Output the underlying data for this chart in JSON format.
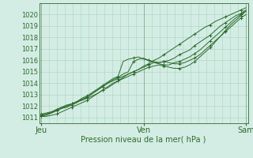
{
  "bg_color": "#d4ede4",
  "grid_color": "#b0d8c8",
  "line_color": "#2d6a2d",
  "ylabel_text": "Pression niveau de la mer( hPa )",
  "xtick_labels": [
    "Jeu",
    "Ven",
    "Sam"
  ],
  "xtick_positions": [
    0,
    1,
    2
  ],
  "ylim": [
    1010.5,
    1021.0
  ],
  "yticks": [
    1011,
    1012,
    1013,
    1014,
    1015,
    1016,
    1017,
    1018,
    1019,
    1020
  ],
  "xlim": [
    -0.02,
    2.02
  ],
  "figsize": [
    3.2,
    2.0
  ],
  "dpi": 100,
  "lines": [
    {
      "x": [
        0.0,
        0.05,
        0.1,
        0.15,
        0.2,
        0.25,
        0.3,
        0.35,
        0.4,
        0.45,
        0.5,
        0.55,
        0.6,
        0.65,
        0.7,
        0.75,
        0.8,
        0.85,
        0.9,
        0.95,
        1.0,
        1.05,
        1.1,
        1.15,
        1.2,
        1.25,
        1.3,
        1.35,
        1.4,
        1.45,
        1.5,
        1.55,
        1.6,
        1.65,
        1.7,
        1.75,
        1.8,
        1.85,
        1.9,
        1.95,
        2.0
      ],
      "y": [
        1011.3,
        1011.4,
        1011.5,
        1011.7,
        1011.9,
        1012.1,
        1012.2,
        1012.4,
        1012.5,
        1012.7,
        1012.9,
        1013.1,
        1013.4,
        1013.6,
        1013.9,
        1014.2,
        1014.5,
        1014.8,
        1015.0,
        1015.2,
        1015.5,
        1015.7,
        1016.0,
        1016.2,
        1016.5,
        1016.8,
        1017.1,
        1017.4,
        1017.7,
        1018.0,
        1018.3,
        1018.6,
        1018.9,
        1019.1,
        1019.4,
        1019.6,
        1019.8,
        1020.0,
        1020.2,
        1020.4,
        1020.6
      ]
    },
    {
      "x": [
        0.0,
        0.05,
        0.1,
        0.15,
        0.2,
        0.25,
        0.3,
        0.35,
        0.4,
        0.45,
        0.5,
        0.55,
        0.6,
        0.65,
        0.7,
        0.75,
        0.8,
        0.85,
        0.9,
        0.95,
        1.0,
        1.05,
        1.1,
        1.15,
        1.2,
        1.25,
        1.3,
        1.35,
        1.4,
        1.45,
        1.5,
        1.55,
        1.6,
        1.65,
        1.7,
        1.75,
        1.8,
        1.85,
        1.9,
        1.95,
        2.0
      ],
      "y": [
        1011.2,
        1011.3,
        1011.5,
        1011.7,
        1011.9,
        1012.0,
        1012.2,
        1012.4,
        1012.7,
        1012.9,
        1013.2,
        1013.5,
        1013.8,
        1014.1,
        1014.4,
        1014.6,
        1015.9,
        1016.1,
        1016.2,
        1016.3,
        1016.1,
        1016.0,
        1015.9,
        1015.8,
        1015.9,
        1016.0,
        1016.2,
        1016.5,
        1016.7,
        1016.9,
        1017.3,
        1017.6,
        1017.9,
        1018.2,
        1018.6,
        1019.0,
        1019.3,
        1019.6,
        1019.9,
        1020.1,
        1020.4
      ]
    },
    {
      "x": [
        0.0,
        0.05,
        0.1,
        0.15,
        0.2,
        0.25,
        0.3,
        0.35,
        0.4,
        0.45,
        0.5,
        0.55,
        0.6,
        0.65,
        0.7,
        0.75,
        0.8,
        0.85,
        0.9,
        0.95,
        1.0,
        1.05,
        1.1,
        1.15,
        1.2,
        1.25,
        1.3,
        1.35,
        1.4,
        1.45,
        1.5,
        1.55,
        1.6,
        1.65,
        1.7,
        1.75,
        1.8,
        1.85,
        1.9,
        1.95,
        2.0
      ],
      "y": [
        1011.2,
        1011.3,
        1011.4,
        1011.6,
        1011.8,
        1012.0,
        1012.2,
        1012.4,
        1012.6,
        1012.8,
        1013.1,
        1013.4,
        1013.7,
        1014.0,
        1014.3,
        1014.5,
        1014.8,
        1015.0,
        1015.9,
        1016.1,
        1016.2,
        1016.0,
        1015.8,
        1015.7,
        1015.6,
        1015.6,
        1015.8,
        1015.9,
        1016.1,
        1016.3,
        1016.6,
        1016.9,
        1017.3,
        1017.7,
        1018.1,
        1018.5,
        1018.9,
        1019.3,
        1019.7,
        1020.0,
        1020.3
      ]
    },
    {
      "x": [
        0.0,
        0.05,
        0.1,
        0.15,
        0.2,
        0.25,
        0.3,
        0.35,
        0.4,
        0.45,
        0.5,
        0.55,
        0.6,
        0.65,
        0.7,
        0.75,
        0.8,
        0.85,
        0.9,
        0.95,
        1.0,
        1.05,
        1.1,
        1.15,
        1.2,
        1.25,
        1.3,
        1.35,
        1.4,
        1.45,
        1.5,
        1.55,
        1.6,
        1.65,
        1.7,
        1.75,
        1.8,
        1.85,
        1.9,
        1.95,
        2.0
      ],
      "y": [
        1011.1,
        1011.2,
        1011.4,
        1011.6,
        1011.8,
        1011.9,
        1012.1,
        1012.3,
        1012.6,
        1012.8,
        1013.1,
        1013.4,
        1013.7,
        1014.0,
        1014.2,
        1014.4,
        1014.6,
        1014.8,
        1015.0,
        1015.2,
        1015.4,
        1015.6,
        1015.8,
        1015.8,
        1015.9,
        1015.8,
        1015.7,
        1015.7,
        1015.8,
        1016.0,
        1016.2,
        1016.5,
        1016.9,
        1017.3,
        1017.7,
        1018.1,
        1018.5,
        1018.9,
        1019.3,
        1019.7,
        1020.0
      ]
    },
    {
      "x": [
        0.0,
        0.05,
        0.1,
        0.15,
        0.2,
        0.25,
        0.3,
        0.35,
        0.4,
        0.45,
        0.5,
        0.55,
        0.6,
        0.65,
        0.7,
        0.75,
        0.8,
        0.85,
        0.9,
        0.95,
        1.0,
        1.05,
        1.1,
        1.15,
        1.2,
        1.25,
        1.3,
        1.35,
        1.4,
        1.45,
        1.5,
        1.55,
        1.6,
        1.65,
        1.7,
        1.75,
        1.8,
        1.85,
        1.9,
        1.95,
        2.0
      ],
      "y": [
        1011.1,
        1011.1,
        1011.2,
        1011.3,
        1011.5,
        1011.7,
        1011.9,
        1012.1,
        1012.3,
        1012.5,
        1012.8,
        1013.1,
        1013.4,
        1013.7,
        1014.0,
        1014.2,
        1014.4,
        1014.6,
        1014.8,
        1015.0,
        1015.2,
        1015.4,
        1015.5,
        1015.6,
        1015.5,
        1015.4,
        1015.3,
        1015.3,
        1015.4,
        1015.6,
        1015.9,
        1016.3,
        1016.7,
        1017.1,
        1017.6,
        1018.1,
        1018.6,
        1019.1,
        1019.5,
        1019.9,
        1020.3
      ]
    }
  ]
}
